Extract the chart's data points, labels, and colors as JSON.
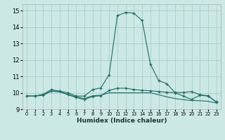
{
  "xlabel": "Humidex (Indice chaleur)",
  "bg_color": "#cce8e4",
  "grid_color": "#aacccc",
  "line_color": "#1a6e64",
  "xlim": [
    -0.5,
    23.5
  ],
  "ylim": [
    9.0,
    15.4
  ],
  "yticks": [
    9,
    10,
    11,
    12,
    13,
    14,
    15
  ],
  "xticks": [
    0,
    1,
    2,
    3,
    4,
    5,
    6,
    7,
    8,
    9,
    10,
    11,
    12,
    13,
    14,
    15,
    16,
    17,
    18,
    19,
    20,
    21,
    22,
    23
  ],
  "series": [
    {
      "x": [
        0,
        1,
        2,
        3,
        4,
        5,
        6,
        7,
        8,
        9,
        10,
        11,
        12,
        13,
        14,
        15,
        16,
        17,
        18,
        19,
        20,
        21,
        22,
        23
      ],
      "y": [
        9.8,
        9.8,
        9.9,
        10.2,
        10.1,
        10.0,
        9.8,
        9.8,
        10.2,
        10.3,
        11.1,
        14.7,
        14.9,
        14.85,
        14.4,
        11.75,
        10.75,
        10.55,
        10.0,
        9.8,
        9.6,
        9.85,
        9.8,
        9.45
      ],
      "markers": true,
      "linestyle": "-"
    },
    {
      "x": [
        0,
        1,
        2,
        3,
        4,
        5,
        6,
        7,
        8,
        9,
        10,
        11,
        12,
        13,
        14,
        15,
        16,
        17,
        18,
        19,
        20,
        21,
        22,
        23
      ],
      "y": [
        9.8,
        9.8,
        9.9,
        10.1,
        10.05,
        9.9,
        9.75,
        9.65,
        9.82,
        9.85,
        10.0,
        10.0,
        10.0,
        10.0,
        10.0,
        10.0,
        9.88,
        9.75,
        9.65,
        9.58,
        9.53,
        9.52,
        9.48,
        9.38
      ],
      "markers": false,
      "linestyle": "-"
    },
    {
      "x": [
        0,
        1,
        2,
        3,
        4,
        5,
        6,
        7,
        8,
        9,
        10,
        11,
        12,
        13,
        14,
        15,
        16,
        17,
        18,
        19,
        20,
        21,
        22,
        23
      ],
      "y": [
        9.8,
        9.8,
        9.85,
        10.1,
        10.1,
        9.88,
        9.72,
        9.58,
        9.78,
        9.82,
        10.15,
        10.28,
        10.28,
        10.2,
        10.15,
        10.12,
        10.08,
        10.03,
        10.02,
        10.02,
        10.08,
        9.88,
        9.82,
        9.42
      ],
      "markers": true,
      "linestyle": "-"
    }
  ]
}
